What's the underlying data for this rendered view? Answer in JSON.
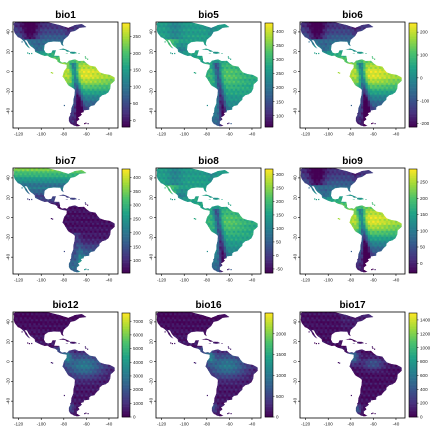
{
  "colors": {
    "palette": "viridis",
    "viridis": [
      "#440154",
      "#46337E",
      "#365C8D",
      "#277F8E",
      "#1FA187",
      "#4AC16D",
      "#A0DA39",
      "#FDE725"
    ],
    "frame": "#000000",
    "background": "#ffffff"
  },
  "chart_data": [
    {
      "type": "heatmap",
      "title": "bio1",
      "xticks": [
        "-120",
        "-100",
        "-80",
        "-60",
        "-40"
      ],
      "yticks": [
        "40",
        "20",
        "0",
        "-20",
        "-40"
      ],
      "xlim": [
        -125,
        -32
      ],
      "ylim": [
        -57,
        50
      ],
      "colorbar_ticks": [
        0,
        50,
        100,
        150,
        200,
        250
      ],
      "colorbar_range": [
        -20,
        290
      ],
      "pattern": "tropics_high"
    },
    {
      "type": "heatmap",
      "title": "bio5",
      "xticks": [
        "-120",
        "-100",
        "-80",
        "-60",
        "-40"
      ],
      "yticks": [
        "40",
        "20",
        "0",
        "-20",
        "-40"
      ],
      "xlim": [
        -125,
        -32
      ],
      "ylim": [
        -57,
        50
      ],
      "colorbar_ticks": [
        100,
        150,
        200,
        250,
        300,
        350,
        400
      ],
      "colorbar_range": [
        60,
        430
      ],
      "pattern": "uniform_mid"
    },
    {
      "type": "heatmap",
      "title": "bio6",
      "xticks": [
        "-120",
        "-100",
        "-80",
        "-60",
        "-40"
      ],
      "yticks": [
        "40",
        "20",
        "0",
        "-20",
        "-40"
      ],
      "xlim": [
        -125,
        -32
      ],
      "ylim": [
        -57,
        50
      ],
      "colorbar_ticks": [
        -200,
        -100,
        0,
        100,
        200
      ],
      "colorbar_range": [
        -215,
        240
      ],
      "pattern": "tropics_high"
    },
    {
      "type": "heatmap",
      "title": "bio7",
      "xticks": [
        "-120",
        "-100",
        "-80",
        "-60",
        "-40"
      ],
      "yticks": [
        "40",
        "20",
        "0",
        "-20",
        "-40"
      ],
      "xlim": [
        -125,
        -32
      ],
      "ylim": [
        -57,
        50
      ],
      "colorbar_ticks": [
        100,
        150,
        200,
        250,
        300,
        350,
        400
      ],
      "colorbar_range": [
        55,
        430
      ],
      "pattern": "north_high"
    },
    {
      "type": "heatmap",
      "title": "bio8",
      "xticks": [
        "-120",
        "-100",
        "-80",
        "-60",
        "-40"
      ],
      "yticks": [
        "40",
        "20",
        "0",
        "-20",
        "-40"
      ],
      "xlim": [
        -125,
        -32
      ],
      "ylim": [
        -57,
        50
      ],
      "colorbar_ticks": [
        -50,
        0,
        50,
        100,
        150,
        200,
        250,
        300
      ],
      "colorbar_range": [
        -65,
        320
      ],
      "pattern": "uniform_mid"
    },
    {
      "type": "heatmap",
      "title": "bio9",
      "xticks": [
        "-120",
        "-100",
        "-80",
        "-60",
        "-40"
      ],
      "yticks": [
        "40",
        "20",
        "0",
        "-20",
        "-40"
      ],
      "xlim": [
        -125,
        -32
      ],
      "ylim": [
        -57,
        50
      ],
      "colorbar_ticks": [
        0,
        50,
        100,
        150,
        200,
        250
      ],
      "colorbar_range": [
        -30,
        290
      ],
      "pattern": "tropics_high"
    },
    {
      "type": "heatmap",
      "title": "bio12",
      "xticks": [
        "-120",
        "-100",
        "-80",
        "-60",
        "-40"
      ],
      "yticks": [
        "40",
        "20",
        "0",
        "-20",
        "-40"
      ],
      "xlim": [
        -125,
        -32
      ],
      "ylim": [
        -57,
        50
      ],
      "colorbar_ticks": [
        0,
        1000,
        2000,
        3000,
        4000,
        5000,
        6000,
        7000
      ],
      "colorbar_range": [
        0,
        7600
      ],
      "pattern": "wet_low"
    },
    {
      "type": "heatmap",
      "title": "bio16",
      "xticks": [
        "-120",
        "-100",
        "-80",
        "-60",
        "-40"
      ],
      "yticks": [
        "40",
        "20",
        "0",
        "-20",
        "-40"
      ],
      "xlim": [
        -125,
        -32
      ],
      "ylim": [
        -57,
        50
      ],
      "colorbar_ticks": [
        0,
        500,
        1000,
        1500,
        2000
      ],
      "colorbar_range": [
        0,
        2500
      ],
      "pattern": "wet_low"
    },
    {
      "type": "heatmap",
      "title": "bio17",
      "xticks": [
        "-120",
        "-100",
        "-80",
        "-60",
        "-40"
      ],
      "yticks": [
        "40",
        "20",
        "0",
        "-20",
        "-40"
      ],
      "xlim": [
        -125,
        -32
      ],
      "ylim": [
        -57,
        50
      ],
      "colorbar_ticks": [
        0,
        200,
        400,
        600,
        800,
        1000,
        1200,
        1400
      ],
      "colorbar_range": [
        0,
        1500
      ],
      "pattern": "dry_low"
    }
  ]
}
